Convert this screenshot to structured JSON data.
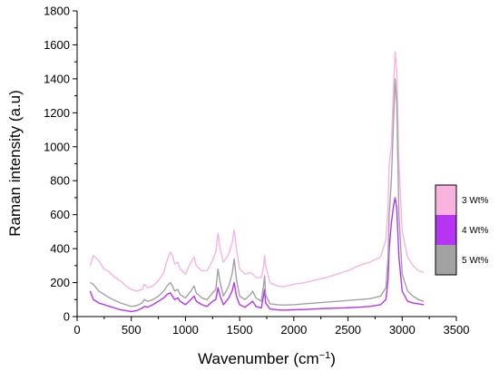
{
  "chart_data": {
    "type": "line",
    "title": "",
    "xlabel_main": "Wavenumber (cm",
    "xlabel_sup": "−1",
    "xlabel_close": ")",
    "ylabel": "Raman intensity (a.u)",
    "xlim": [
      0,
      3500
    ],
    "ylim": [
      0,
      1800
    ],
    "xticks": [
      0,
      500,
      1000,
      1500,
      2000,
      2500,
      3000,
      3500
    ],
    "yticks": [
      0,
      200,
      400,
      600,
      800,
      1000,
      1200,
      1400,
      1600,
      1800
    ],
    "grid": false,
    "legend_position": "right",
    "series": [
      {
        "name": "3 Wt%",
        "color": "#f9b3df",
        "x": [
          120,
          150,
          200,
          250,
          300,
          350,
          400,
          450,
          500,
          550,
          600,
          620,
          650,
          700,
          750,
          800,
          830,
          860,
          880,
          900,
          930,
          950,
          1000,
          1050,
          1080,
          1100,
          1150,
          1200,
          1250,
          1280,
          1300,
          1320,
          1350,
          1400,
          1430,
          1450,
          1470,
          1500,
          1550,
          1600,
          1620,
          1650,
          1700,
          1720,
          1730,
          1740,
          1780,
          1850,
          1900,
          2000,
          2100,
          2200,
          2300,
          2400,
          2500,
          2600,
          2700,
          2800,
          2850,
          2870,
          2880,
          2900,
          2920,
          2935,
          2950,
          2970,
          3000,
          3050,
          3100,
          3150,
          3200
        ],
        "y": [
          300,
          360,
          330,
          280,
          260,
          230,
          210,
          180,
          160,
          150,
          160,
          190,
          170,
          180,
          210,
          260,
          330,
          380,
          360,
          310,
          320,
          280,
          250,
          320,
          350,
          300,
          270,
          270,
          330,
          380,
          490,
          400,
          320,
          370,
          430,
          510,
          400,
          280,
          250,
          260,
          250,
          230,
          230,
          290,
          360,
          300,
          200,
          180,
          175,
          190,
          200,
          215,
          230,
          250,
          270,
          300,
          320,
          350,
          450,
          650,
          900,
          1000,
          1350,
          1560,
          1450,
          900,
          500,
          350,
          300,
          270,
          260
        ]
      },
      {
        "name": "4 Wt%",
        "color": "#b535f2",
        "x": [
          120,
          150,
          200,
          250,
          300,
          350,
          400,
          450,
          500,
          550,
          600,
          620,
          650,
          700,
          750,
          800,
          830,
          860,
          880,
          900,
          930,
          950,
          1000,
          1050,
          1080,
          1100,
          1150,
          1200,
          1250,
          1280,
          1300,
          1320,
          1350,
          1400,
          1430,
          1450,
          1470,
          1500,
          1550,
          1600,
          1620,
          1650,
          1700,
          1720,
          1730,
          1740,
          1780,
          1850,
          1900,
          2000,
          2100,
          2200,
          2300,
          2400,
          2500,
          2600,
          2700,
          2800,
          2850,
          2870,
          2880,
          2900,
          2920,
          2935,
          2950,
          2970,
          3000,
          3050,
          3100,
          3150,
          3200
        ],
        "y": [
          150,
          100,
          80,
          70,
          60,
          50,
          40,
          35,
          30,
          35,
          50,
          60,
          55,
          70,
          90,
          110,
          130,
          140,
          120,
          100,
          110,
          90,
          70,
          100,
          120,
          90,
          70,
          60,
          90,
          100,
          170,
          120,
          70,
          110,
          150,
          200,
          120,
          70,
          55,
          80,
          90,
          60,
          50,
          120,
          160,
          80,
          45,
          40,
          38,
          40,
          42,
          45,
          48,
          50,
          52,
          55,
          60,
          70,
          100,
          220,
          400,
          550,
          650,
          700,
          640,
          350,
          150,
          90,
          80,
          75,
          70
        ]
      },
      {
        "name": "5 Wt%",
        "color": "#a2a2a2",
        "x": [
          120,
          150,
          200,
          250,
          300,
          350,
          400,
          450,
          500,
          550,
          600,
          620,
          650,
          700,
          750,
          800,
          830,
          860,
          880,
          900,
          930,
          950,
          1000,
          1050,
          1080,
          1100,
          1150,
          1200,
          1250,
          1280,
          1300,
          1320,
          1350,
          1400,
          1430,
          1450,
          1470,
          1500,
          1550,
          1600,
          1620,
          1650,
          1700,
          1720,
          1730,
          1740,
          1780,
          1850,
          1900,
          2000,
          2100,
          2200,
          2300,
          2400,
          2500,
          2600,
          2700,
          2800,
          2850,
          2870,
          2880,
          2900,
          2920,
          2935,
          2950,
          2970,
          3000,
          3050,
          3100,
          3150,
          3200
        ],
        "y": [
          200,
          190,
          150,
          130,
          110,
          95,
          80,
          70,
          60,
          65,
          80,
          100,
          90,
          100,
          120,
          150,
          180,
          200,
          180,
          150,
          160,
          130,
          110,
          150,
          180,
          140,
          110,
          100,
          140,
          160,
          280,
          200,
          120,
          180,
          250,
          340,
          220,
          120,
          100,
          130,
          150,
          110,
          90,
          180,
          240,
          130,
          75,
          70,
          68,
          70,
          75,
          80,
          85,
          90,
          95,
          100,
          105,
          120,
          170,
          350,
          600,
          800,
          1150,
          1400,
          1250,
          600,
          250,
          150,
          120,
          100,
          90
        ]
      }
    ]
  }
}
